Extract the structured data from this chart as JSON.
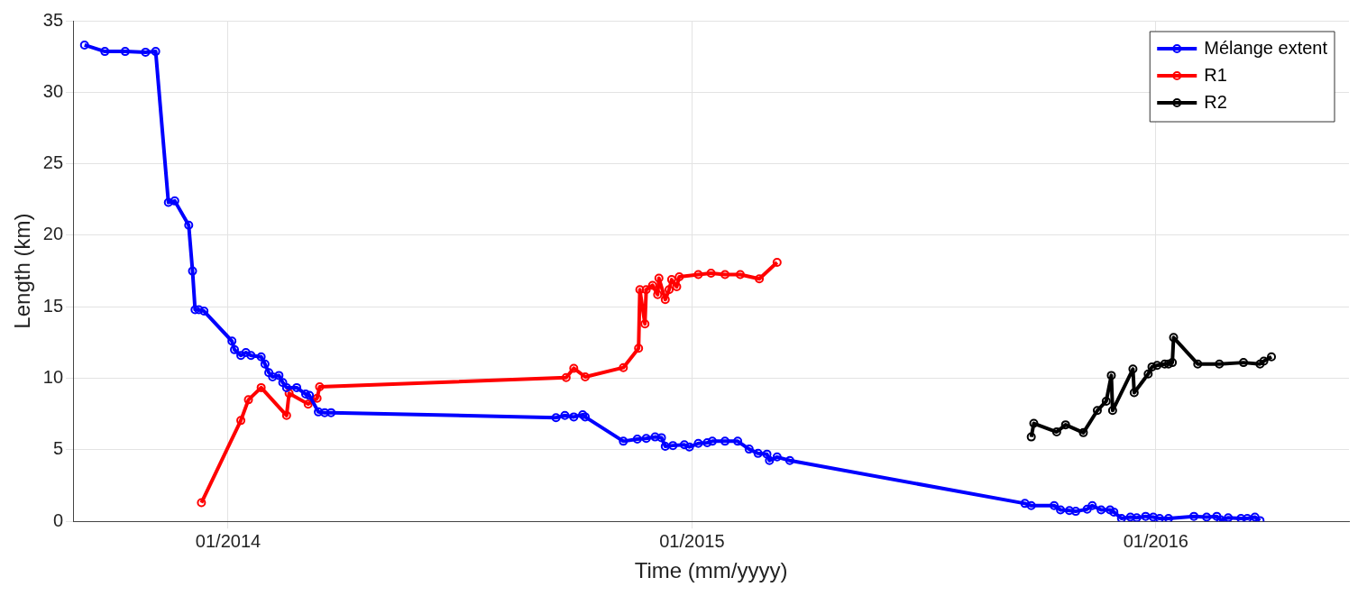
{
  "chart_data": {
    "type": "line",
    "xlabel": "Time (mm/yyyy)",
    "ylabel": "Length (km)",
    "xlim": [
      "2013-09-01",
      "2016-06-01"
    ],
    "xticks": [
      {
        "value": "2014-01-01",
        "label": "01/2014"
      },
      {
        "value": "2015-01-01",
        "label": "01/2015"
      },
      {
        "value": "2016-01-01",
        "label": "01/2016"
      }
    ],
    "ylim": [
      0,
      35
    ],
    "yticks": [
      0,
      5,
      10,
      15,
      20,
      25,
      30,
      35
    ],
    "grid": true,
    "legend": "top right",
    "marker": "circle",
    "line_style": "solid",
    "series": [
      {
        "name": "Mélange extent",
        "color": "#0000ff",
        "x": [
          "2013-09-10",
          "2013-09-26",
          "2013-10-12",
          "2013-10-28",
          "2013-11-05",
          "2013-11-15",
          "2013-11-20",
          "2013-12-01",
          "2013-12-04",
          "2013-12-06",
          "2013-12-09",
          "2013-12-13",
          "2014-01-04",
          "2014-01-06",
          "2014-01-11",
          "2014-01-15",
          "2014-01-19",
          "2014-01-27",
          "2014-01-30",
          "2014-02-02",
          "2014-02-05",
          "2014-02-10",
          "2014-02-13",
          "2014-02-16",
          "2014-02-24",
          "2014-03-03",
          "2014-03-06",
          "2014-03-13",
          "2014-03-18",
          "2014-03-23",
          "2014-09-16",
          "2014-09-23",
          "2014-09-30",
          "2014-10-07",
          "2014-10-09",
          "2014-11-08",
          "2014-11-19",
          "2014-11-26",
          "2014-12-03",
          "2014-12-08",
          "2014-12-11",
          "2014-12-17",
          "2014-12-26",
          "2014-12-30",
          "2015-01-06",
          "2015-01-13",
          "2015-01-17",
          "2015-01-27",
          "2015-02-06",
          "2015-02-15",
          "2015-02-22",
          "2015-03-01",
          "2015-03-03",
          "2015-03-09",
          "2015-03-19",
          "2015-09-20",
          "2015-09-25",
          "2015-10-13",
          "2015-10-18",
          "2015-10-25",
          "2015-10-30",
          "2015-11-08",
          "2015-11-12",
          "2015-11-19",
          "2015-11-26",
          "2015-11-29",
          "2015-12-05",
          "2015-12-12",
          "2015-12-17",
          "2015-12-24",
          "2015-12-30",
          "2016-01-04",
          "2016-01-11",
          "2016-01-31",
          "2016-02-10",
          "2016-02-18",
          "2016-02-21",
          "2016-02-27",
          "2016-03-08",
          "2016-03-13",
          "2016-03-19",
          "2016-03-23"
        ],
        "values": [
          33.3,
          32.85,
          32.85,
          32.8,
          32.85,
          22.3,
          22.4,
          20.7,
          17.5,
          14.8,
          14.8,
          14.7,
          12.6,
          12.0,
          11.6,
          11.8,
          11.6,
          11.5,
          11.0,
          10.4,
          10.1,
          10.2,
          9.7,
          9.35,
          9.35,
          8.9,
          8.8,
          7.65,
          7.6,
          7.6,
          7.25,
          7.4,
          7.3,
          7.45,
          7.3,
          5.6,
          5.75,
          5.8,
          5.9,
          5.85,
          5.25,
          5.3,
          5.35,
          5.2,
          5.45,
          5.5,
          5.6,
          5.6,
          5.6,
          5.05,
          4.75,
          4.7,
          4.25,
          4.5,
          4.25,
          1.25,
          1.1,
          1.1,
          0.8,
          0.75,
          0.7,
          0.85,
          1.1,
          0.8,
          0.8,
          0.65,
          0.2,
          0.3,
          0.25,
          0.35,
          0.3,
          0.2,
          0.2,
          0.35,
          0.3,
          0.35,
          0.1,
          0.25,
          0.2,
          0.2,
          0.3,
          0.05
        ]
      },
      {
        "name": "R1",
        "color": "#ff0000",
        "x": [
          "2013-12-11",
          "2014-01-11",
          "2014-01-17",
          "2014-01-27",
          "2014-02-16",
          "2014-02-18",
          "2014-03-05",
          "2014-03-12",
          "2014-03-14",
          "2014-09-24",
          "2014-09-30",
          "2014-10-09",
          "2014-11-08",
          "2014-11-20",
          "2014-11-21",
          "2014-11-25",
          "2014-11-26",
          "2014-12-01",
          "2014-12-05",
          "2014-12-06",
          "2014-12-11",
          "2014-12-14",
          "2014-12-16",
          "2014-12-20",
          "2014-12-22",
          "2015-01-06",
          "2015-01-16",
          "2015-01-27",
          "2015-02-08",
          "2015-02-23",
          "2015-03-09"
        ],
        "values": [
          1.3,
          7.05,
          8.5,
          9.35,
          7.4,
          8.95,
          8.2,
          8.6,
          9.4,
          10.05,
          10.7,
          10.1,
          10.75,
          12.1,
          16.2,
          13.8,
          16.2,
          16.5,
          15.85,
          17.0,
          15.5,
          16.2,
          16.9,
          16.4,
          17.1,
          17.25,
          17.35,
          17.25,
          17.25,
          16.95,
          18.1
        ]
      },
      {
        "name": "R2",
        "color": "#000000",
        "x": [
          "2015-09-25",
          "2015-09-27",
          "2015-10-15",
          "2015-10-22",
          "2015-11-05",
          "2015-11-16",
          "2015-11-23",
          "2015-11-27",
          "2015-11-28",
          "2015-12-14",
          "2015-12-15",
          "2015-12-26",
          "2015-12-29",
          "2016-01-02",
          "2016-01-08",
          "2016-01-11",
          "2016-01-14",
          "2016-01-15",
          "2016-02-03",
          "2016-02-20",
          "2016-03-10",
          "2016-03-23",
          "2016-03-26",
          "2016-04-01"
        ],
        "values": [
          5.9,
          6.85,
          6.25,
          6.75,
          6.2,
          7.75,
          8.4,
          10.2,
          7.75,
          10.65,
          9.0,
          10.3,
          10.8,
          10.9,
          11.0,
          11.0,
          11.1,
          12.85,
          11.0,
          11.0,
          11.1,
          11.0,
          11.2,
          11.5
        ]
      }
    ]
  }
}
